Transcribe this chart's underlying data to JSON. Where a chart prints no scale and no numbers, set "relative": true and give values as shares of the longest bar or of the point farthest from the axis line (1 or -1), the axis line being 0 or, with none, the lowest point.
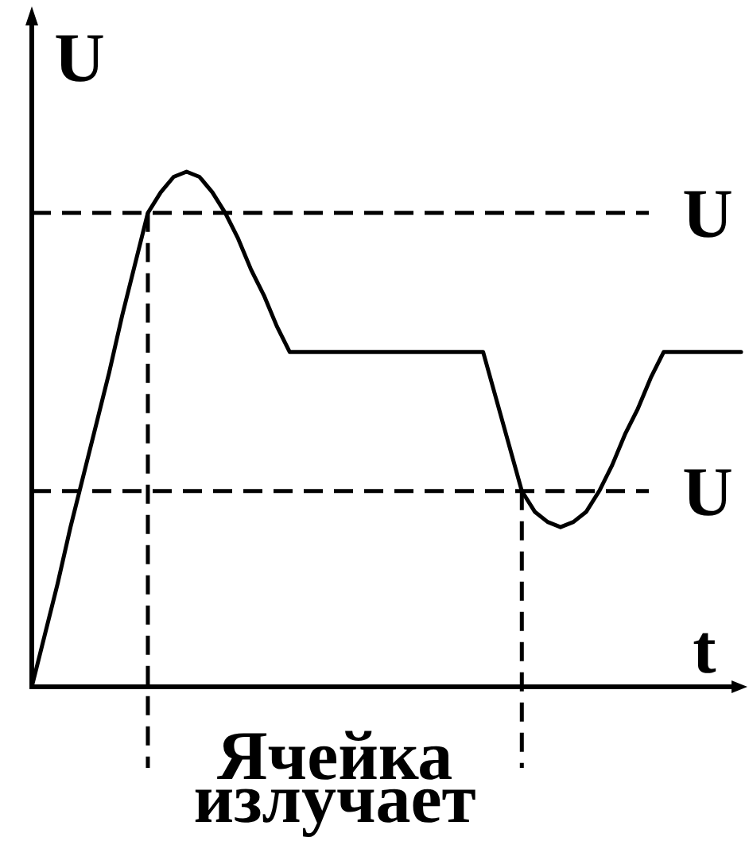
{
  "chart_data": {
    "type": "line",
    "xlabel": "t",
    "ylabel": "U",
    "relative": true,
    "categories": [
      null,
      null,
      null,
      null,
      null,
      null,
      null,
      null,
      null,
      null,
      null,
      null,
      null,
      null,
      null,
      null,
      null,
      null,
      null,
      null,
      null,
      null,
      null,
      null,
      null,
      null,
      null,
      null,
      null,
      null,
      null,
      null,
      null,
      null,
      null,
      null,
      null,
      null,
      null,
      null,
      null,
      null,
      null,
      null,
      null,
      null,
      null,
      null,
      null,
      null,
      null,
      null,
      null,
      null,
      null,
      null
    ],
    "series": [
      {
        "color": "#000000",
        "values": [
          0,
          0.1,
          0.2,
          0.31,
          0.41,
          0.51,
          0.61,
          0.72,
          0.82,
          0.92,
          0.96,
          0.99,
          1,
          0.99,
          0.96,
          0.92,
          0.87,
          0.81,
          0.76,
          0.7,
          0.65,
          0.65,
          0.65,
          0.65,
          0.65,
          0.65,
          0.65,
          0.65,
          0.65,
          0.65,
          0.65,
          0.65,
          0.65,
          0.65,
          0.65,
          0.65,
          0.56,
          0.47,
          0.38,
          0.34,
          0.32,
          0.31,
          0.32,
          0.34,
          0.38,
          0.43,
          0.49,
          0.54,
          0.6,
          0.65,
          0.65,
          0.65,
          0.65,
          0.65,
          0.65,
          0.65
        ]
      }
    ],
    "ref_lines": [
      {
        "axis": "y",
        "value": 0.92,
        "label": "U",
        "line_style": "dashed",
        "color": "#000000"
      },
      {
        "axis": "y",
        "value": 0.38,
        "label": "U",
        "line_style": "dashed",
        "color": "#000000"
      }
    ],
    "annotations": [
      "Ячейка излучает"
    ]
  }
}
